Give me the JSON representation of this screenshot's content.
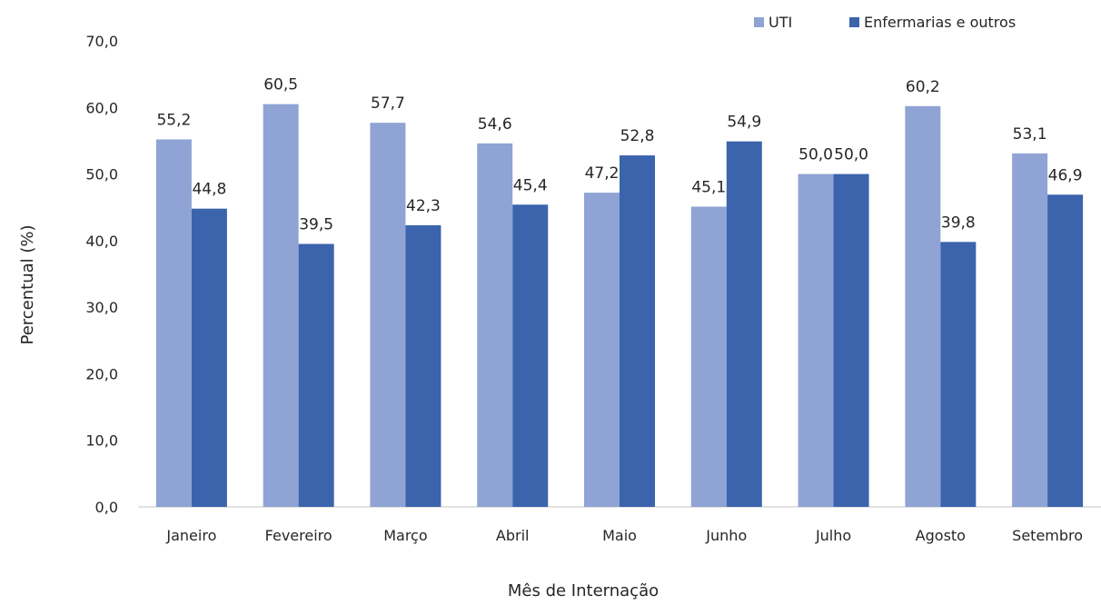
{
  "chart_data": {
    "type": "bar",
    "title": "",
    "xlabel": "Mês de Internação",
    "ylabel": "Percentual (%)",
    "ylim": [
      0,
      70
    ],
    "yticks": [
      "0,0",
      "10,0",
      "20,0",
      "30,0",
      "40,0",
      "50,0",
      "60,0",
      "70,0"
    ],
    "grid": false,
    "legend_position": "top-right",
    "categories": [
      "Janeiro",
      "Fevereiro",
      "Março",
      "Abril",
      "Maio",
      "Junho",
      "Julho",
      "Agosto",
      "Setembro"
    ],
    "series": [
      {
        "name": "UTI",
        "color": "#8FA3D4",
        "values": [
          55.2,
          60.5,
          57.7,
          54.6,
          47.2,
          45.1,
          50.0,
          60.2,
          53.1
        ],
        "labels": [
          "55,2",
          "60,5",
          "57,7",
          "54,6",
          "47,2",
          "45,1",
          "50,0",
          "60,2",
          "53,1"
        ]
      },
      {
        "name": "Enfermarias e outros",
        "color": "#3B64AD",
        "values": [
          44.8,
          39.5,
          42.3,
          45.4,
          52.8,
          54.9,
          50.0,
          39.8,
          46.9
        ],
        "labels": [
          "44,8",
          "39,5",
          "42,3",
          "45,4",
          "52,8",
          "54,9",
          "50,0",
          "39,8",
          "46,9"
        ]
      }
    ]
  }
}
